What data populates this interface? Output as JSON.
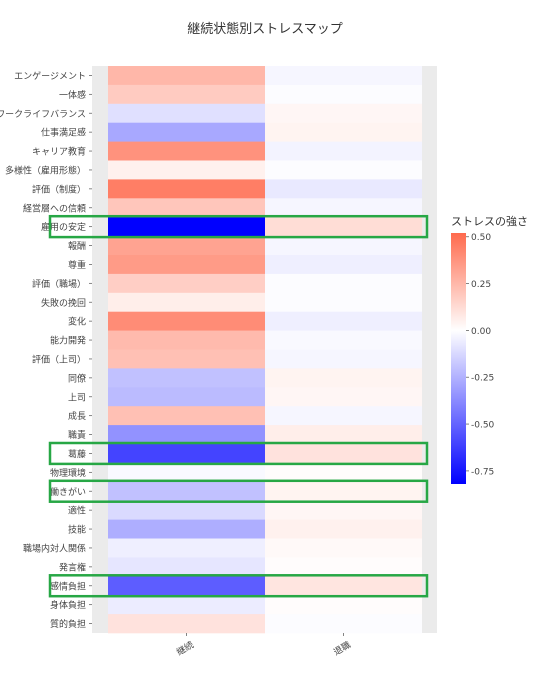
{
  "chart_data": {
    "type": "heatmap",
    "title": "継続状態別ストレスマップ",
    "xlabel": "",
    "ylabel": "",
    "x_categories": [
      "継続",
      "退職"
    ],
    "y_categories": [
      "エンゲージメント",
      "一体感",
      "ワークライフバランス",
      "仕事満足感",
      "キャリア教育",
      "多様性（雇用形態）",
      "評価（制度）",
      "経営層への信頼",
      "雇用の安定",
      "報酬",
      "尊重",
      "評価（職場）",
      "失敗の挽回",
      "変化",
      "能力開発",
      "評価（上司）",
      "同僚",
      "上司",
      "成長",
      "職責",
      "葛藤",
      "物理環境",
      "働きがい",
      "適性",
      "技能",
      "職場内対人関係",
      "発言権",
      "感情負担",
      "身体負担",
      "質的負担"
    ],
    "values": [
      [
        0.25,
        -0.03
      ],
      [
        0.18,
        -0.01
      ],
      [
        -0.1,
        0.03
      ],
      [
        -0.28,
        0.04
      ],
      [
        0.38,
        -0.04
      ],
      [
        0.05,
        -0.01
      ],
      [
        0.45,
        -0.07
      ],
      [
        0.2,
        -0.03
      ],
      [
        -0.82,
        0.12
      ],
      [
        0.32,
        -0.03
      ],
      [
        0.35,
        -0.05
      ],
      [
        0.17,
        -0.01
      ],
      [
        0.06,
        -0.01
      ],
      [
        0.4,
        -0.05
      ],
      [
        0.24,
        -0.02
      ],
      [
        0.22,
        -0.03
      ],
      [
        -0.2,
        0.04
      ],
      [
        -0.22,
        0.03
      ],
      [
        0.22,
        -0.03
      ],
      [
        -0.35,
        0.06
      ],
      [
        -0.6,
        0.1
      ],
      [
        -0.02,
        0.01
      ],
      [
        -0.2,
        0.04
      ],
      [
        -0.12,
        0.03
      ],
      [
        -0.26,
        0.05
      ],
      [
        -0.05,
        0.02
      ],
      [
        -0.08,
        0.01
      ],
      [
        -0.52,
        0.09
      ],
      [
        -0.06,
        0.01
      ],
      [
        0.1,
        -0.01
      ]
    ],
    "zlim": [
      -0.82,
      0.52
    ],
    "colorbar": {
      "title": "ストレスの強さ",
      "ticks": [
        0.5,
        0.25,
        0.0,
        -0.25,
        -0.5,
        -0.75
      ],
      "tick_labels": [
        "0.50",
        "0.25",
        "0.00",
        "-0.25",
        "-0.50",
        "-0.75"
      ],
      "colors": {
        "high": "#ff6a4d",
        "mid": "#ffffff",
        "low": "#0000ff"
      }
    },
    "highlighted_rows": [
      "雇用の安定",
      "葛藤",
      "働きがい",
      "感情負担"
    ],
    "highlight_color": "#27a745",
    "panel_background": "#ebebeb",
    "legend_position": "right"
  }
}
